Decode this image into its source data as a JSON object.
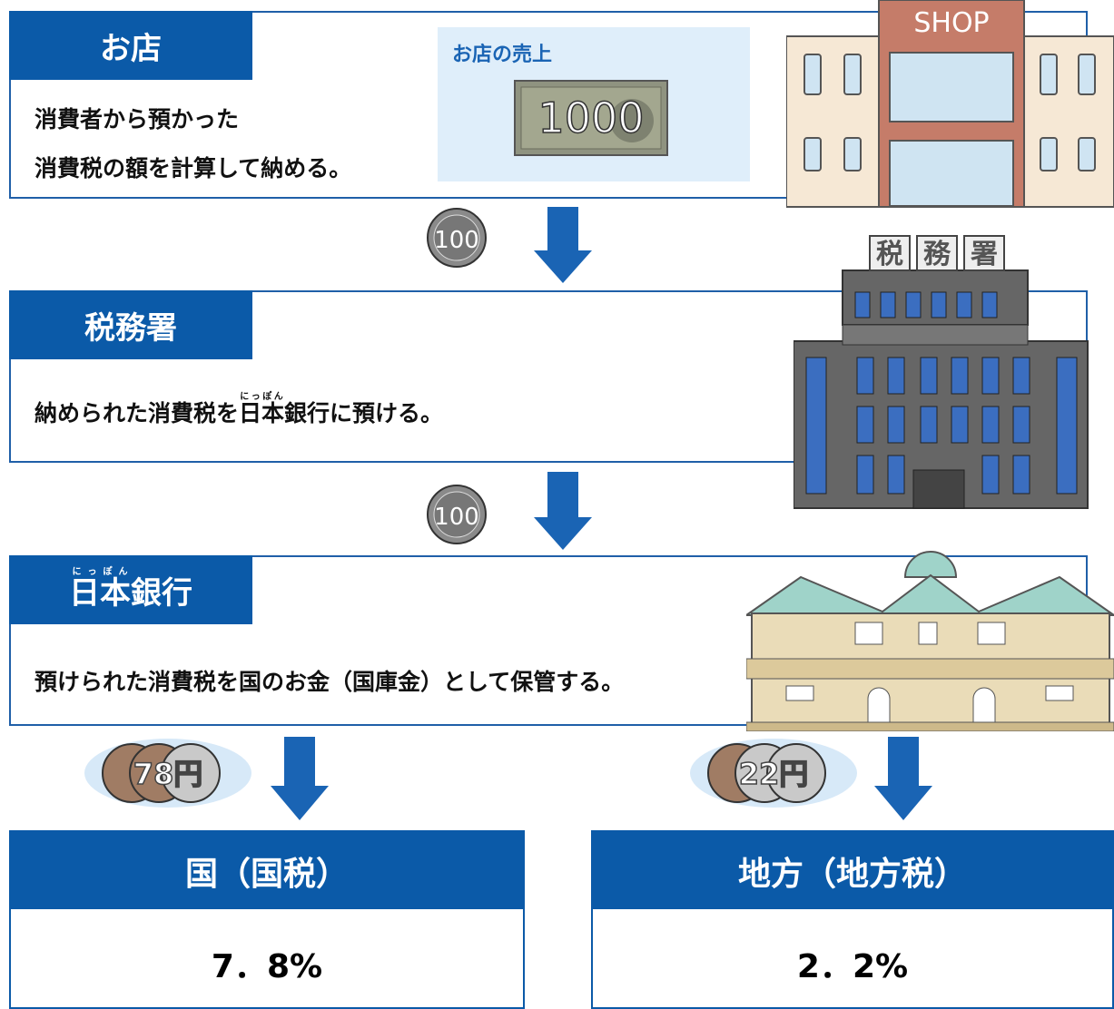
{
  "shop": {
    "title": "お店",
    "description": [
      "消費者から預かった",
      "消費税の額を計算して納める。"
    ],
    "sales_label": "お店の売上",
    "bill": "1000",
    "sign": "SHOP"
  },
  "flow_coins": [
    "100",
    "100"
  ],
  "tax_office": {
    "title": "税務署",
    "description": {
      "before": "納められた消費税を",
      "ruby": {
        "base": "日本",
        "reading": "にっぽん"
      },
      "after": "銀行に預ける。"
    },
    "sign": [
      "税",
      "務",
      "署"
    ]
  },
  "bank": {
    "title": {
      "ruby": {
        "base": "日本",
        "reading": "にっぽん"
      },
      "after": "銀行"
    },
    "description": "預けられた消費税を国のお金（国庫金）として保管する。"
  },
  "split_coins": [
    "78円",
    "22円"
  ],
  "destinations": [
    {
      "title": "国（国税）",
      "rate": "7．8%"
    },
    {
      "title": "地方（地方税）",
      "rate": "2．2%"
    }
  ]
}
